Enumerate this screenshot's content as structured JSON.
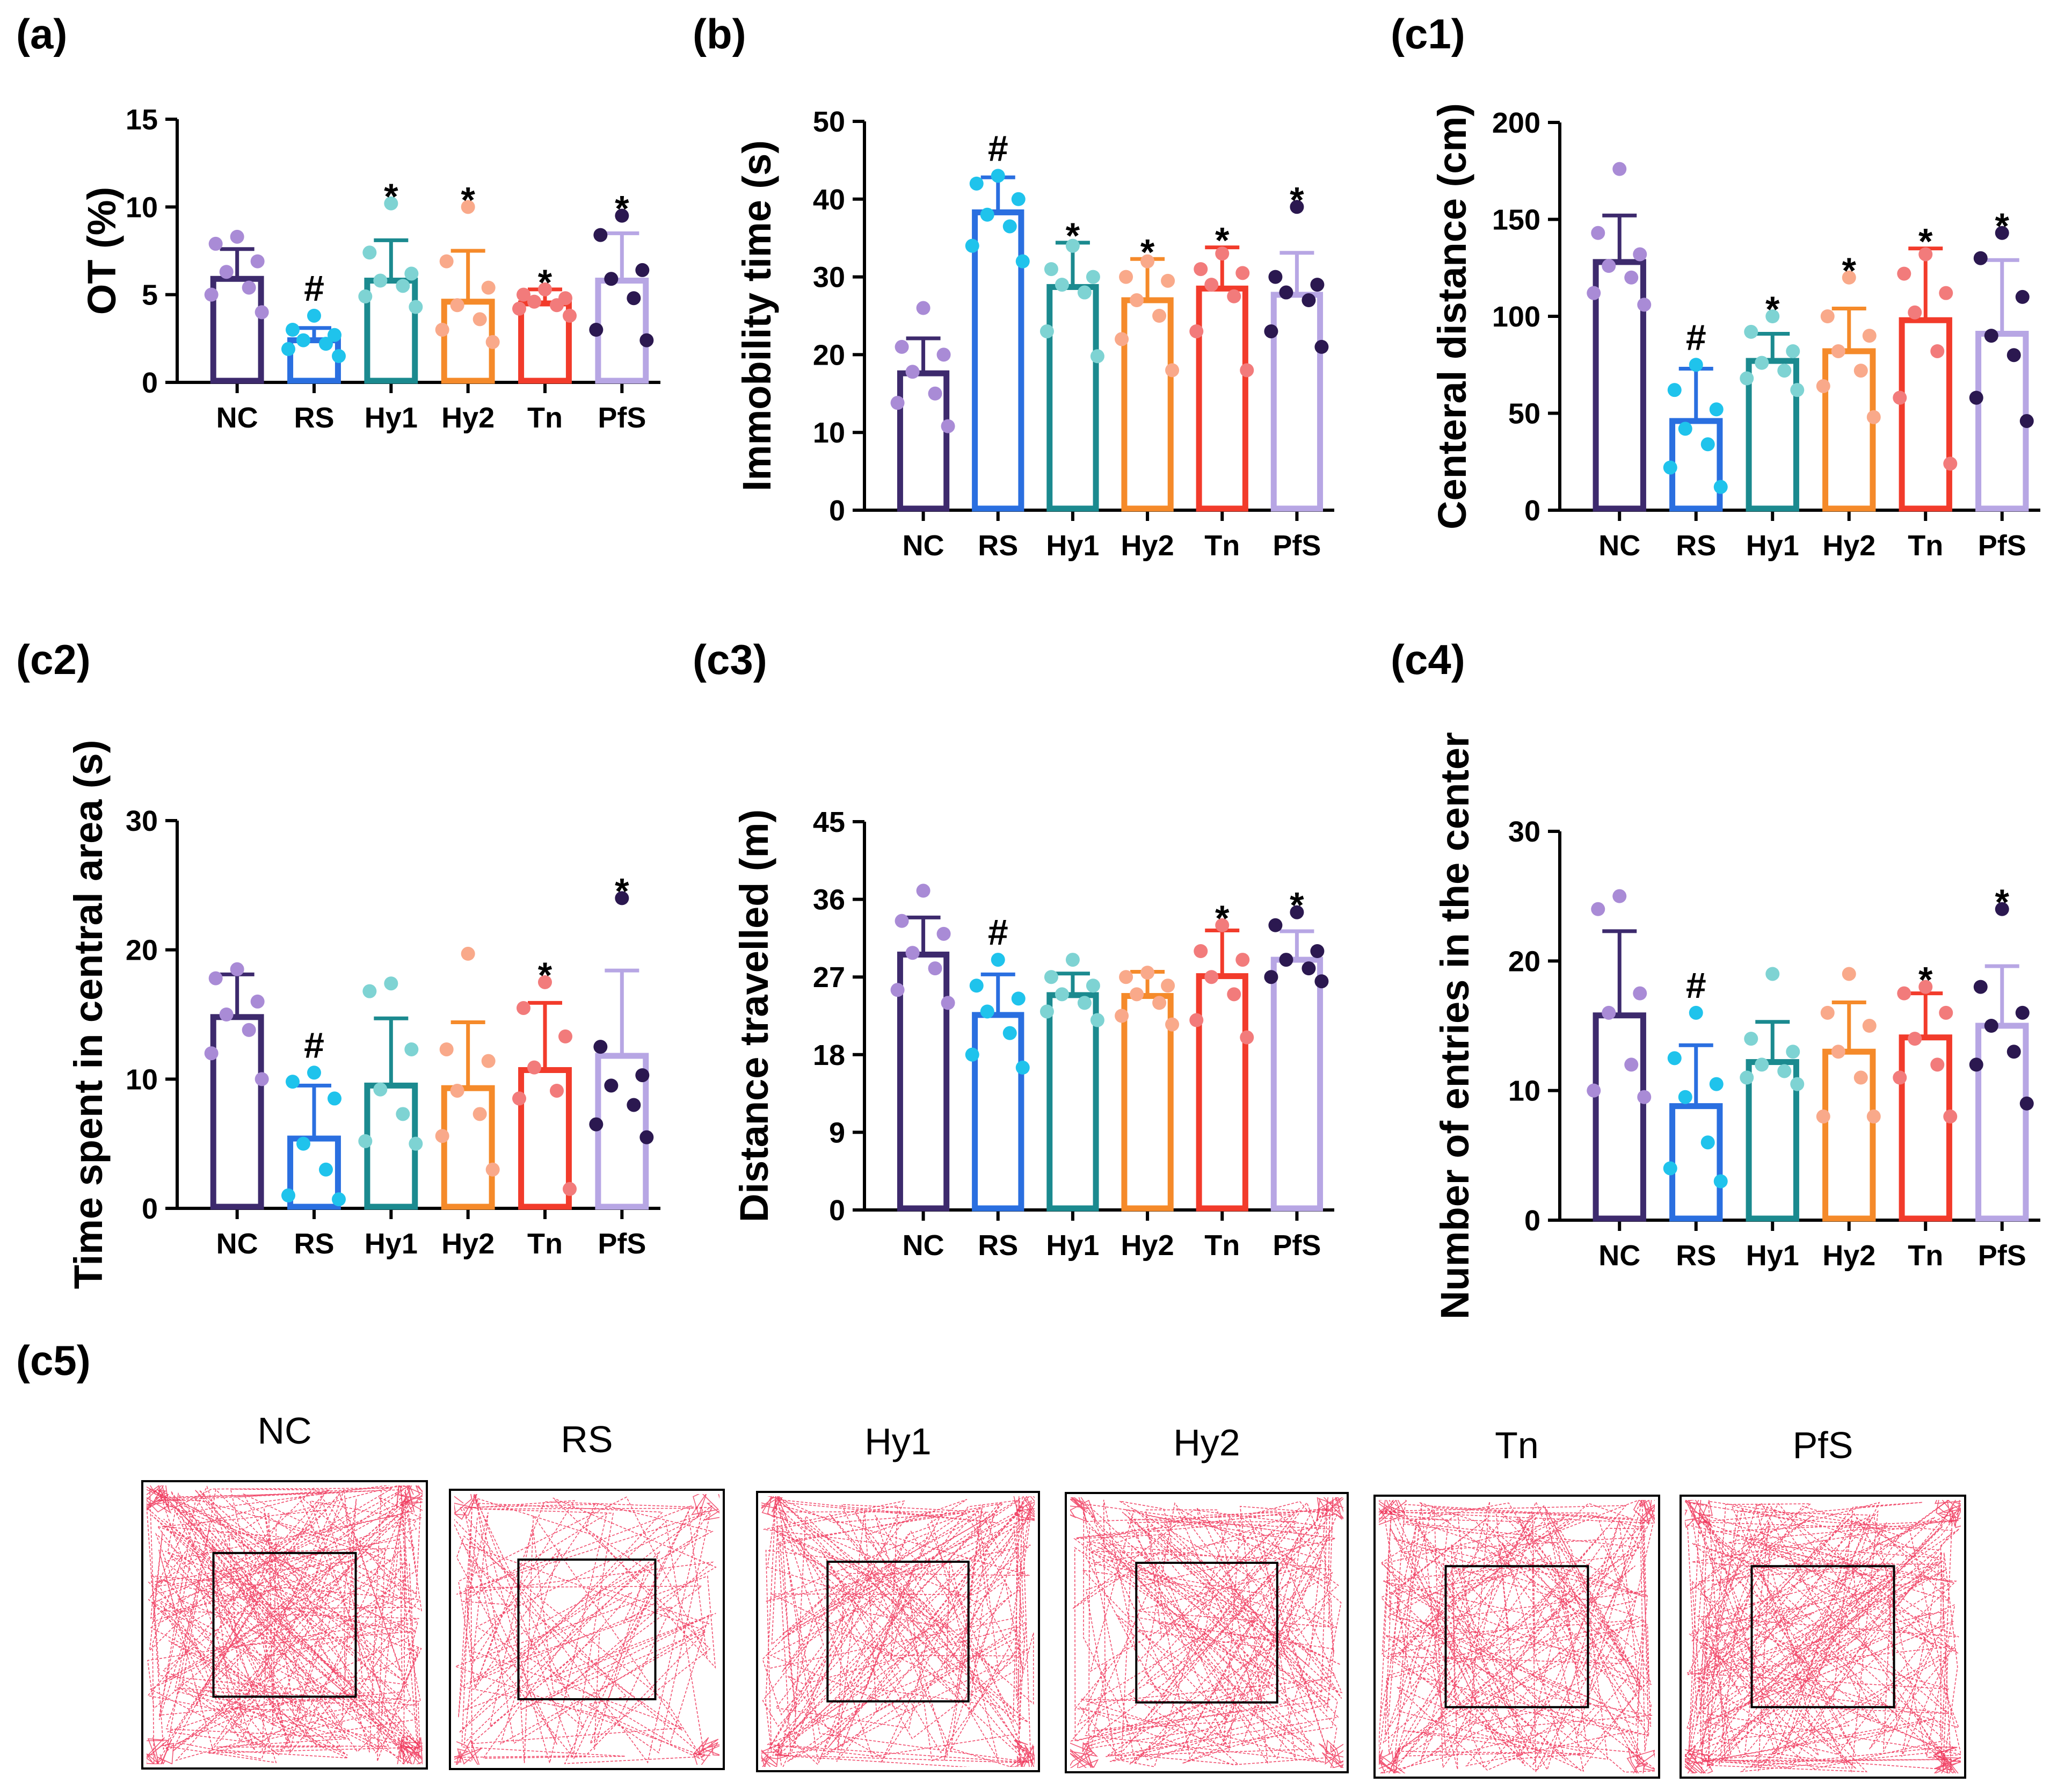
{
  "chart_data": [
    {
      "panel": "(a)",
      "type": "bar",
      "ylabel": "OT (%)",
      "ylim": [
        0,
        15
      ],
      "yticks": [
        0,
        5,
        10,
        15
      ],
      "categories": [
        "NC",
        "RS",
        "Hy1",
        "Hy2",
        "Tn",
        "PfS"
      ],
      "means": [
        5.9,
        2.4,
        5.8,
        4.6,
        4.5,
        5.8
      ],
      "sd": [
        1.7,
        0.7,
        2.3,
        2.9,
        0.8,
        2.7
      ],
      "points": [
        [
          8.3,
          7.9,
          6.9,
          6.3,
          5.4,
          5.0,
          4.0
        ],
        [
          3.8,
          3.0,
          2.7,
          2.4,
          2.2,
          1.9,
          1.5
        ],
        [
          10.2,
          7.4,
          6.2,
          5.8,
          5.5,
          4.9,
          4.3
        ],
        [
          10.0,
          6.9,
          5.4,
          4.4,
          3.6,
          3.0,
          2.3
        ],
        [
          5.3,
          5.0,
          4.8,
          4.6,
          4.4,
          4.2,
          3.8
        ],
        [
          9.5,
          8.4,
          6.4,
          5.9,
          4.8,
          3.0,
          2.4
        ]
      ],
      "marks": [
        "",
        "#",
        "*",
        "*",
        "*",
        "*"
      ]
    },
    {
      "panel": "(b)",
      "type": "bar",
      "ylabel": "Immobility time (s)",
      "ylim": [
        0,
        50
      ],
      "yticks": [
        0,
        10,
        20,
        30,
        40,
        50
      ],
      "categories": [
        "NC",
        "RS",
        "Hy1",
        "Hy2",
        "Tn",
        "PfS"
      ],
      "means": [
        17.6,
        38.3,
        28.7,
        27.0,
        28.5,
        27.7
      ],
      "sd": [
        4.5,
        4.5,
        5.7,
        5.3,
        5.3,
        5.4
      ],
      "points": [
        [
          26.0,
          21.0,
          20.0,
          17.8,
          15.0,
          13.8,
          10.8
        ],
        [
          43.0,
          42.0,
          40.0,
          38.0,
          36.5,
          34.0,
          32.0
        ],
        [
          34.0,
          31.0,
          30.0,
          29.0,
          28.0,
          23.0,
          19.8
        ],
        [
          32.0,
          30.0,
          29.5,
          27.0,
          25.0,
          22.0,
          18.0
        ],
        [
          33.0,
          31.0,
          30.5,
          29.0,
          27.5,
          23.0,
          18.0
        ],
        [
          39.0,
          30.0,
          29.0,
          28.0,
          27.0,
          23.0,
          21.0
        ]
      ],
      "marks": [
        "",
        "#",
        "*",
        "*",
        "*",
        "*"
      ]
    },
    {
      "panel": "(c1)",
      "type": "bar",
      "ylabel": "Centeral distance (cm)",
      "ylim": [
        0,
        200
      ],
      "yticks": [
        0,
        50,
        100,
        150,
        200
      ],
      "categories": [
        "NC",
        "RS",
        "Hy1",
        "Hy2",
        "Tn",
        "PfS"
      ],
      "means": [
        128,
        46,
        77,
        82,
        98,
        91
      ],
      "sd": [
        24,
        27,
        14,
        22,
        37,
        38
      ],
      "points": [
        [
          176,
          143,
          132,
          126,
          120,
          112,
          106
        ],
        [
          75,
          62,
          52,
          42,
          34,
          22,
          12
        ],
        [
          100,
          92,
          82,
          76,
          72,
          68,
          62
        ],
        [
          120,
          100,
          90,
          82,
          72,
          64,
          48
        ],
        [
          132,
          122,
          112,
          102,
          82,
          58,
          24
        ],
        [
          143,
          130,
          110,
          90,
          80,
          58,
          46
        ]
      ],
      "marks": [
        "",
        "#",
        "*",
        "*",
        "*",
        "*"
      ]
    },
    {
      "panel": "(c2)",
      "type": "bar",
      "ylabel": "Time spent in central area (s)",
      "ylim": [
        0,
        30
      ],
      "yticks": [
        0,
        10,
        20,
        30
      ],
      "categories": [
        "NC",
        "RS",
        "Hy1",
        "Hy2",
        "Tn",
        "PfS"
      ],
      "means": [
        14.8,
        5.4,
        9.5,
        9.3,
        10.7,
        11.8
      ],
      "sd": [
        3.3,
        4.1,
        5.2,
        5.1,
        5.2,
        6.6
      ],
      "points": [
        [
          18.5,
          17.8,
          16.0,
          15.0,
          13.8,
          12.0,
          10.0
        ],
        [
          10.5,
          9.8,
          8.5,
          5.0,
          3.0,
          1.0,
          0.7
        ],
        [
          17.4,
          16.8,
          12.3,
          9.2,
          7.3,
          5.2,
          5.0
        ],
        [
          19.7,
          12.3,
          11.4,
          9.1,
          7.3,
          5.6,
          3.0
        ],
        [
          17.5,
          15.5,
          13.3,
          10.9,
          9.1,
          8.5,
          1.5
        ],
        [
          24.0,
          12.5,
          10.3,
          9.5,
          8.0,
          6.5,
          5.5
        ]
      ],
      "marks": [
        "",
        "#",
        "",
        "",
        "*",
        "*"
      ]
    },
    {
      "panel": "(c3)",
      "type": "bar",
      "ylabel": "Distance travelled (m)",
      "ylim": [
        0,
        45
      ],
      "yticks": [
        0,
        9,
        18,
        27,
        36,
        45
      ],
      "categories": [
        "NC",
        "RS",
        "Hy1",
        "Hy2",
        "Tn",
        "PfS"
      ],
      "means": [
        29.6,
        22.6,
        24.9,
        24.8,
        27.1,
        29.0
      ],
      "sd": [
        4.3,
        4.7,
        2.5,
        2.8,
        5.3,
        3.3
      ],
      "points": [
        [
          37.0,
          33.5,
          32.0,
          29.8,
          28.0,
          25.5,
          24.0
        ],
        [
          29.0,
          26.0,
          24.5,
          23.0,
          20.5,
          18.0,
          16.5
        ],
        [
          29.0,
          27.0,
          26.0,
          25.0,
          24.0,
          23.0,
          22.0
        ],
        [
          27.5,
          27.0,
          26.0,
          25.0,
          24.0,
          22.5,
          21.5
        ],
        [
          33.0,
          30.0,
          29.0,
          27.0,
          25.0,
          22.0,
          20.0
        ],
        [
          34.5,
          33.0,
          30.0,
          29.0,
          28.0,
          27.0,
          26.5
        ]
      ],
      "marks": [
        "",
        "#",
        "",
        "",
        "*",
        "*"
      ]
    },
    {
      "panel": "(c4)",
      "type": "bar",
      "ylabel": "Number of entries in the center",
      "ylim": [
        0,
        30
      ],
      "yticks": [
        0,
        10,
        20,
        30
      ],
      "categories": [
        "NC",
        "RS",
        "Hy1",
        "Hy2",
        "Tn",
        "PfS"
      ],
      "means": [
        15.8,
        8.8,
        12.2,
        13.0,
        14.1,
        15.0
      ],
      "sd": [
        6.5,
        4.7,
        3.1,
        3.8,
        3.4,
        4.6
      ],
      "points": [
        [
          25.0,
          24.0,
          17.5,
          16.0,
          12.0,
          10.0,
          9.5
        ],
        [
          16.0,
          12.5,
          10.5,
          9.5,
          6.0,
          4.0,
          3.0
        ],
        [
          19.0,
          14.0,
          13.0,
          12.0,
          11.5,
          11.0,
          10.5
        ],
        [
          19.0,
          16.0,
          15.0,
          13.0,
          11.0,
          8.0,
          8.0
        ],
        [
          18.0,
          17.5,
          16.0,
          14.0,
          12.0,
          11.0,
          8.0
        ],
        [
          24.0,
          18.0,
          16.0,
          15.0,
          13.0,
          12.0,
          9.0
        ]
      ],
      "marks": [
        "",
        "#",
        "",
        "",
        "*",
        "*"
      ]
    }
  ],
  "colors": [
    "#3d2a6d",
    "#2a6fe0",
    "#1b8a8f",
    "#f58a2a",
    "#f23b2b",
    "#b7a6e4"
  ],
  "point_colors": [
    "#a98bd6",
    "#1fc3ec",
    "#7ed3d3",
    "#f9a98a",
    "#f27b7b",
    "#2b1850"
  ],
  "tracks": {
    "label": "(c5)",
    "names": [
      "NC",
      "RS",
      "Hy1",
      "Hy2",
      "Tn",
      "PfS"
    ],
    "densities": [
      1.0,
      0.45,
      0.75,
      0.75,
      0.85,
      0.9
    ],
    "trace_color": "#ef2f55"
  }
}
